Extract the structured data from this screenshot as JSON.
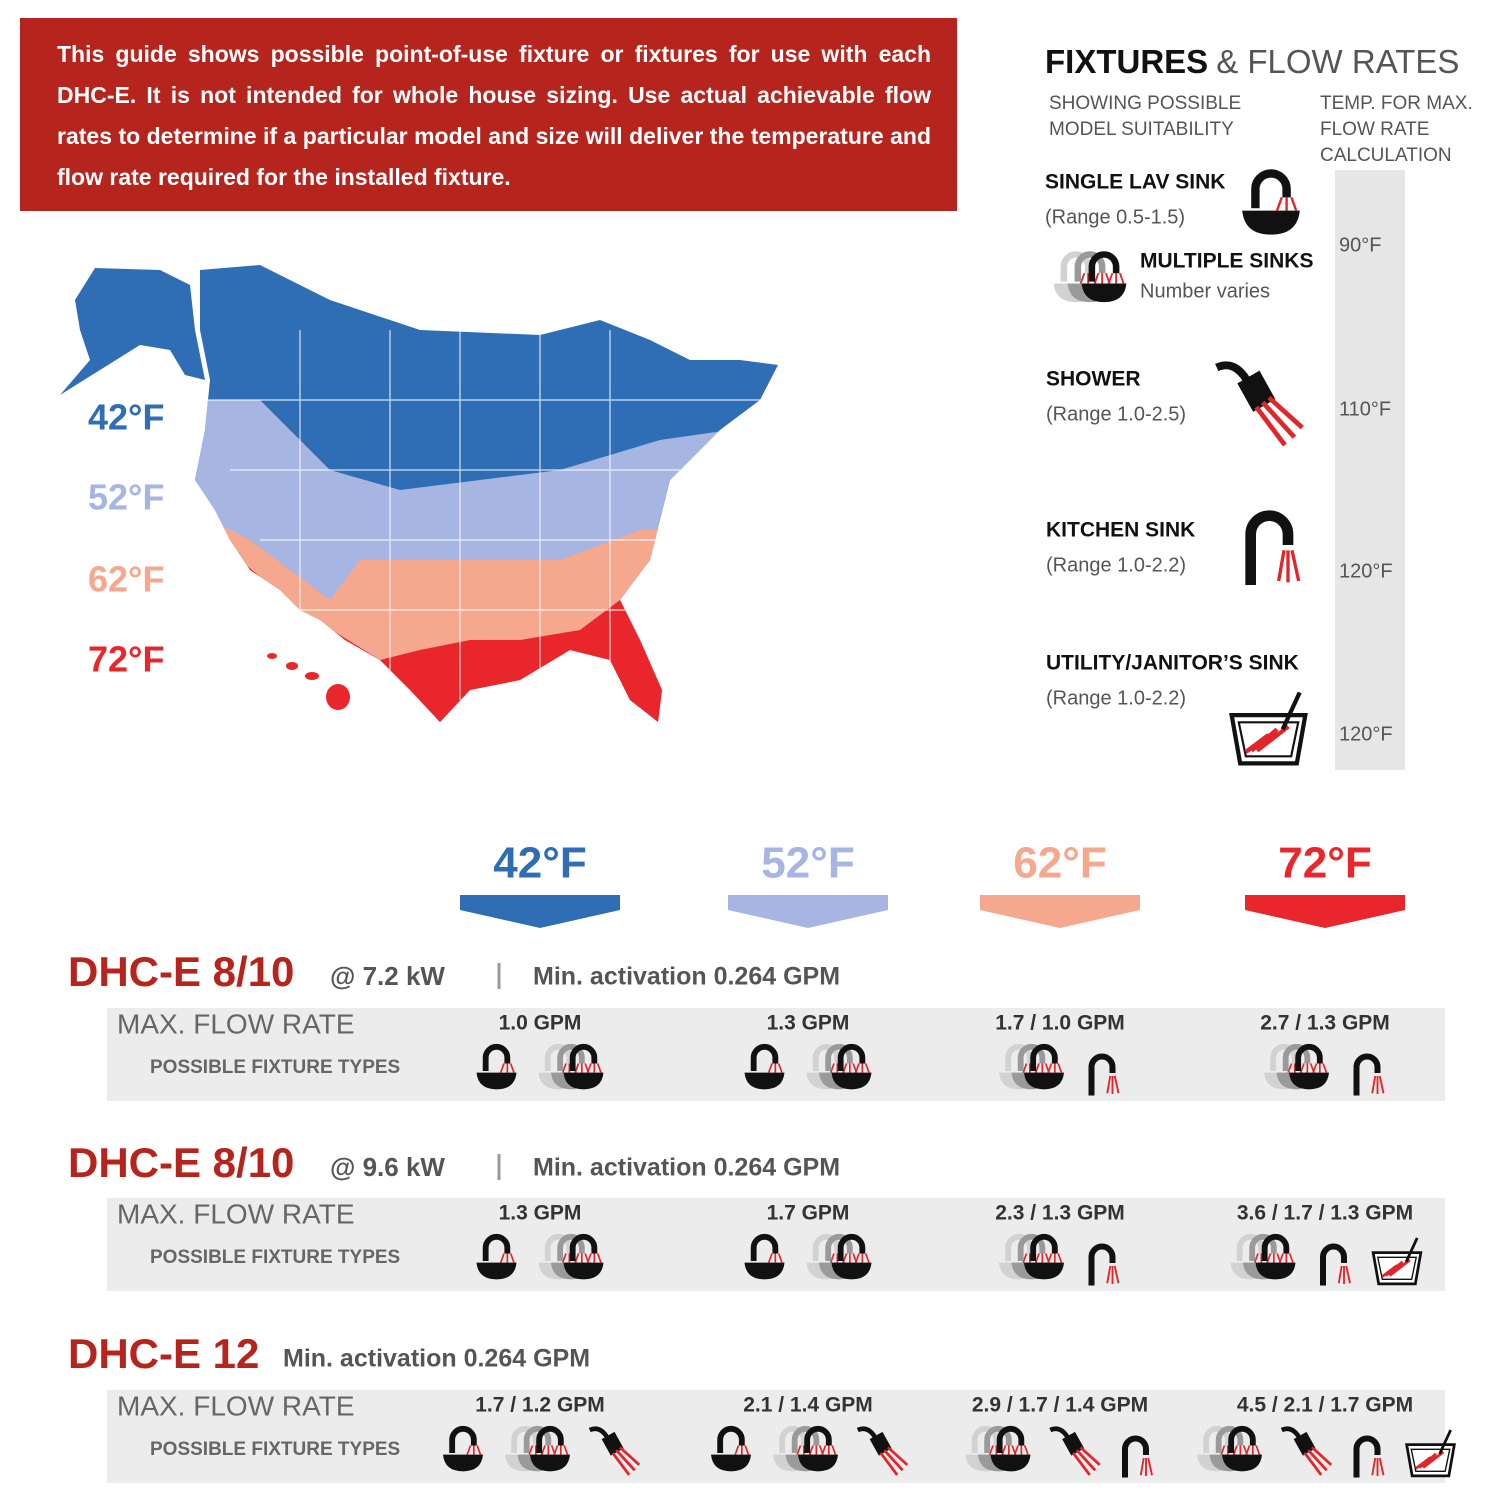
{
  "notice": "This guide shows possible point-of-use fixture or fixtures for use with each DHC-E. It is not intended for whole house sizing. Use actual achievable flow rates to determine if a particular model and size will deliver the temperature and flow rate required for the installed fixture.",
  "zones": [
    {
      "label": "42°F",
      "color": "#2f6db5"
    },
    {
      "label": "52°F",
      "color": "#a7b5e2"
    },
    {
      "label": "62°F",
      "color": "#f5a88e"
    },
    {
      "label": "72°F",
      "color": "#e8262b"
    }
  ],
  "fixtures_panel": {
    "title_bold": "FIXTURES",
    "title_rest": "& FLOW RATES",
    "subtitle": [
      "SHOWING POSSIBLE",
      "MODEL SUITABILITY"
    ],
    "temp_header": [
      "TEMP. FOR MAX.",
      "FLOW RATE",
      "CALCULATION"
    ],
    "fixtures": [
      {
        "name": "SINGLE LAV SINK",
        "range": "(Range 0.5-1.5)"
      },
      {
        "name": "MULTIPLE SINKS",
        "range": "Number varies"
      },
      {
        "name": "SHOWER",
        "range": "(Range 1.0-2.5)"
      },
      {
        "name": "KITCHEN SINK",
        "range": "(Range 1.0-2.2)"
      },
      {
        "name": "UTILITY/JANITOR’S SINK",
        "range": "(Range 1.0-2.2)"
      }
    ],
    "temps": [
      "90°F",
      "110°F",
      "120°F",
      "120°F"
    ]
  },
  "models": [
    {
      "name": "DHC-E 8/10",
      "power": "@ 7.2 kW",
      "activation": "Min. activation 0.264 GPM",
      "row_labels": [
        "MAX. FLOW RATE",
        "POSSIBLE FIXTURE TYPES"
      ],
      "flow_rates": [
        "1.0 GPM",
        "1.3 GPM",
        "1.7 / 1.0 GPM",
        "2.7 / 1.3 GPM"
      ]
    },
    {
      "name": "DHC-E 8/10",
      "power": "@ 9.6 kW",
      "activation": "Min. activation 0.264 GPM",
      "row_labels": [
        "MAX. FLOW RATE",
        "POSSIBLE FIXTURE TYPES"
      ],
      "flow_rates": [
        "1.3 GPM",
        "1.7 GPM",
        "2.3 / 1.3 GPM",
        "3.6 / 1.7 / 1.3 GPM"
      ]
    },
    {
      "name": "DHC-E 12",
      "activation": "Min. activation 0.264 GPM",
      "row_labels": [
        "MAX. FLOW RATE",
        "POSSIBLE FIXTURE TYPES"
      ],
      "flow_rates": [
        "1.7 / 1.2 GPM",
        "2.1 / 1.4 GPM",
        "2.9 / 1.7 / 1.4 GPM",
        "4.5 / 2.1 / 1.7 GPM"
      ]
    }
  ]
}
